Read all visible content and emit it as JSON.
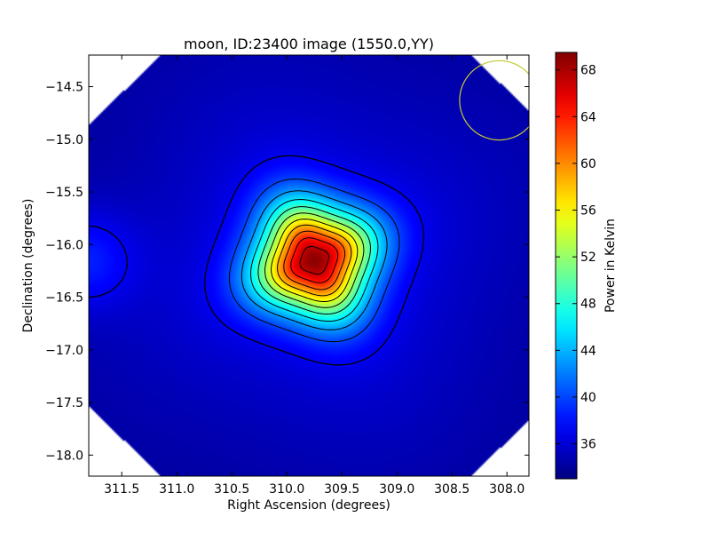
{
  "chart_data": {
    "type": "heatmap",
    "title": "moon, ID:23400 image (1550.0,YY)",
    "xlabel": "Right Ascension (degrees)",
    "ylabel": "Declination (degrees)",
    "colorbar_label": "Power in Kelvin",
    "colormap": "jet",
    "xlim": [
      311.8,
      307.8
    ],
    "ylim": [
      -18.2,
      -14.2
    ],
    "clim": [
      33.0,
      69.5
    ],
    "x_ticks": [
      311.5,
      311.0,
      310.5,
      310.0,
      309.5,
      309.0,
      308.5,
      308.0
    ],
    "x_tick_labels": [
      "311.5",
      "311.0",
      "310.5",
      "310.0",
      "309.5",
      "309.0",
      "308.5",
      "308.0"
    ],
    "y_ticks": [
      -14.5,
      -15.0,
      -15.5,
      -16.0,
      -16.5,
      -17.0,
      -17.5,
      -18.0
    ],
    "y_tick_labels": [
      "−14.5",
      "−15.0",
      "−15.5",
      "−16.0",
      "−16.5",
      "−17.0",
      "−17.5",
      "−18.0"
    ],
    "colorbar_ticks": [
      36,
      40,
      44,
      48,
      52,
      56,
      60,
      64,
      68
    ],
    "colorbar_tick_labels": [
      "36",
      "40",
      "44",
      "48",
      "52",
      "56",
      "60",
      "64",
      "68"
    ],
    "source_peak": {
      "ra": 309.75,
      "dec": -16.15,
      "value": 69.0
    },
    "secondary_source": {
      "ra": 311.85,
      "dec": -16.15,
      "value": 38.0
    },
    "background_level": 34.0,
    "contour_levels": [
      37,
      40,
      43,
      46,
      49,
      52,
      55,
      58,
      61,
      64,
      67
    ],
    "beam_circle": {
      "ra": 308.07,
      "dec": -14.63,
      "radius_deg": 0.36,
      "color": "#c8c832"
    }
  }
}
